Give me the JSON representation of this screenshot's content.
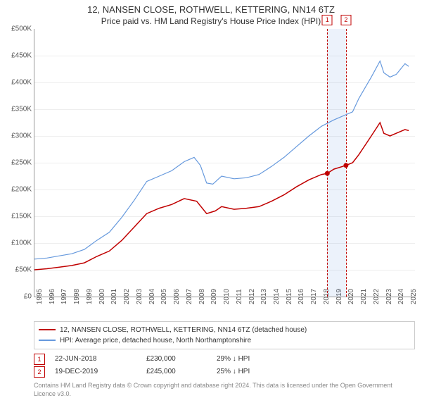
{
  "title_line1": "12, NANSEN CLOSE, ROTHWELL, KETTERING, NN14 6TZ",
  "title_line2": "Price paid vs. HM Land Registry's House Price Index (HPI)",
  "chart": {
    "type": "line",
    "ylim": [
      0,
      500000
    ],
    "ytick_step": 50000,
    "yticks": [
      {
        "v": 0,
        "label": "£0"
      },
      {
        "v": 50000,
        "label": "£50K"
      },
      {
        "v": 100000,
        "label": "£100K"
      },
      {
        "v": 150000,
        "label": "£150K"
      },
      {
        "v": 200000,
        "label": "£200K"
      },
      {
        "v": 250000,
        "label": "£250K"
      },
      {
        "v": 300000,
        "label": "£300K"
      },
      {
        "v": 350000,
        "label": "£350K"
      },
      {
        "v": 400000,
        "label": "£400K"
      },
      {
        "v": 450000,
        "label": "£450K"
      },
      {
        "v": 500000,
        "label": "£500K"
      }
    ],
    "xlim": [
      1995,
      2025.5
    ],
    "xticks": [
      1995,
      1996,
      1997,
      1998,
      1999,
      2000,
      2001,
      2002,
      2003,
      2004,
      2005,
      2006,
      2007,
      2008,
      2009,
      2010,
      2011,
      2012,
      2013,
      2014,
      2015,
      2016,
      2017,
      2018,
      2019,
      2020,
      2021,
      2022,
      2023,
      2024,
      2025
    ],
    "background_color": "#ffffff",
    "grid_color": "#eeeeee",
    "axis_color": "#999999",
    "tick_font_size": 10,
    "series": [
      {
        "name": "property",
        "color": "#c00000",
        "width": 1.5,
        "points": [
          [
            1995,
            50000
          ],
          [
            1996,
            52000
          ],
          [
            1997,
            55000
          ],
          [
            1998,
            58000
          ],
          [
            1999,
            63000
          ],
          [
            2000,
            75000
          ],
          [
            2001,
            85000
          ],
          [
            2002,
            105000
          ],
          [
            2003,
            130000
          ],
          [
            2004,
            155000
          ],
          [
            2005,
            165000
          ],
          [
            2006,
            172000
          ],
          [
            2007,
            183000
          ],
          [
            2008,
            178000
          ],
          [
            2008.8,
            155000
          ],
          [
            2009.5,
            160000
          ],
          [
            2010,
            168000
          ],
          [
            2011,
            163000
          ],
          [
            2012,
            165000
          ],
          [
            2013,
            168000
          ],
          [
            2014,
            178000
          ],
          [
            2015,
            190000
          ],
          [
            2016,
            205000
          ],
          [
            2017,
            218000
          ],
          [
            2018,
            228000
          ],
          [
            2018.47,
            230000
          ],
          [
            2019,
            238000
          ],
          [
            2019.97,
            245000
          ],
          [
            2020.5,
            250000
          ],
          [
            2021,
            265000
          ],
          [
            2022,
            300000
          ],
          [
            2022.7,
            325000
          ],
          [
            2023,
            305000
          ],
          [
            2023.5,
            300000
          ],
          [
            2024,
            305000
          ],
          [
            2024.7,
            312000
          ],
          [
            2025,
            310000
          ]
        ]
      },
      {
        "name": "hpi",
        "color": "#6699dd",
        "width": 1.2,
        "points": [
          [
            1995,
            70000
          ],
          [
            1996,
            72000
          ],
          [
            1997,
            76000
          ],
          [
            1998,
            80000
          ],
          [
            1999,
            88000
          ],
          [
            2000,
            105000
          ],
          [
            2001,
            120000
          ],
          [
            2002,
            148000
          ],
          [
            2003,
            180000
          ],
          [
            2004,
            215000
          ],
          [
            2005,
            225000
          ],
          [
            2006,
            235000
          ],
          [
            2007,
            252000
          ],
          [
            2007.8,
            260000
          ],
          [
            2008.3,
            245000
          ],
          [
            2008.8,
            212000
          ],
          [
            2009.3,
            210000
          ],
          [
            2010,
            225000
          ],
          [
            2011,
            220000
          ],
          [
            2012,
            222000
          ],
          [
            2013,
            228000
          ],
          [
            2014,
            243000
          ],
          [
            2015,
            260000
          ],
          [
            2016,
            280000
          ],
          [
            2017,
            300000
          ],
          [
            2018,
            318000
          ],
          [
            2019,
            330000
          ],
          [
            2020,
            340000
          ],
          [
            2020.5,
            345000
          ],
          [
            2021,
            370000
          ],
          [
            2022,
            410000
          ],
          [
            2022.7,
            440000
          ],
          [
            2023,
            418000
          ],
          [
            2023.5,
            410000
          ],
          [
            2024,
            415000
          ],
          [
            2024.7,
            435000
          ],
          [
            2025,
            430000
          ]
        ]
      }
    ],
    "markers": [
      {
        "id": "1",
        "x": 2018.47,
        "y": 230000
      },
      {
        "id": "2",
        "x": 2019.97,
        "y": 245000
      }
    ],
    "shade": {
      "from": 2018.47,
      "to": 2019.97
    }
  },
  "legend": {
    "items": [
      {
        "color": "#c00000",
        "label": "12, NANSEN CLOSE, ROTHWELL, KETTERING, NN14 6TZ (detached house)"
      },
      {
        "color": "#6699dd",
        "label": "HPI: Average price, detached house, North Northamptonshire"
      }
    ]
  },
  "marker_table": [
    {
      "id": "1",
      "date": "22-JUN-2018",
      "price": "£230,000",
      "delta": "29% ↓ HPI"
    },
    {
      "id": "2",
      "date": "19-DEC-2019",
      "price": "£245,000",
      "delta": "25% ↓ HPI"
    }
  ],
  "footer": "Contains HM Land Registry data © Crown copyright and database right 2024. This data is licensed under the Open Government Licence v3.0."
}
